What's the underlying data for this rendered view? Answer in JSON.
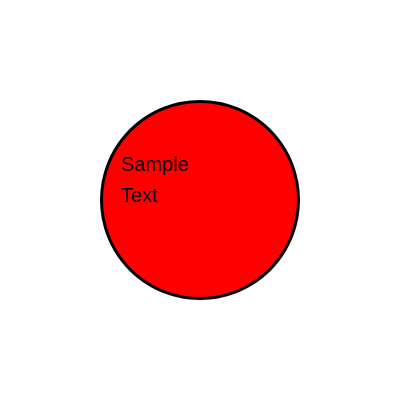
{
  "shape": {
    "kind": "circle",
    "fill_color": "#ff0000",
    "stroke_color": "#000000",
    "text_color": "#000000",
    "text_lines": [
      "Sample",
      "Text"
    ]
  },
  "page": {
    "background_color": "#ffffff"
  }
}
